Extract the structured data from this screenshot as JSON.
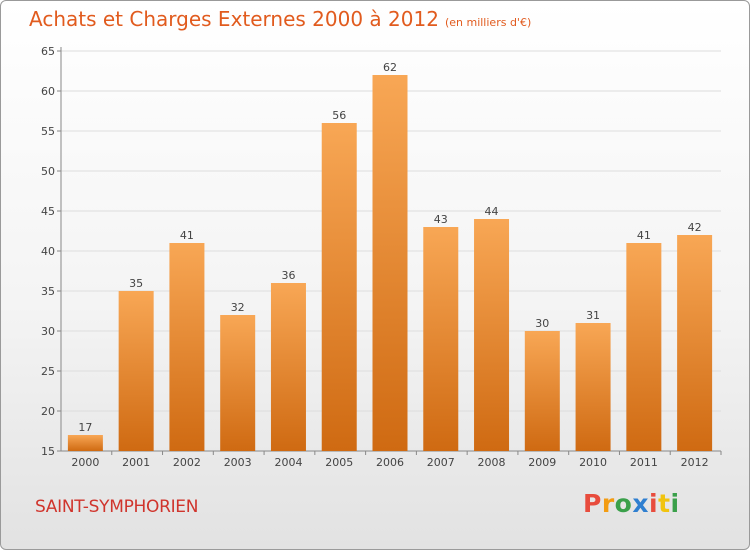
{
  "header": {
    "title": "Achats et Charges Externes 2000 à 2012",
    "subtitle": "(en milliers d'€)"
  },
  "footer": {
    "place": "SAINT-SYMPHORIEN",
    "logo_text": "Proxiti"
  },
  "colors": {
    "bar_light": "#f8a755",
    "bar_dark": "#cf6a12",
    "title": "#e15b1e",
    "place": "#d0342c"
  },
  "chart_data": {
    "type": "bar",
    "title": "Achats et Charges Externes 2000 à 2012",
    "subtitle": "(en milliers d'€)",
    "categories": [
      "2000",
      "2001",
      "2002",
      "2003",
      "2004",
      "2005",
      "2006",
      "2007",
      "2008",
      "2009",
      "2010",
      "2011",
      "2012"
    ],
    "values": [
      17,
      35,
      41,
      32,
      36,
      56,
      62,
      43,
      44,
      30,
      31,
      41,
      42
    ],
    "ylim": [
      15,
      65
    ],
    "yticks": [
      15,
      20,
      25,
      30,
      35,
      40,
      45,
      50,
      55,
      60,
      65
    ],
    "grid": true,
    "data_labels": true
  }
}
